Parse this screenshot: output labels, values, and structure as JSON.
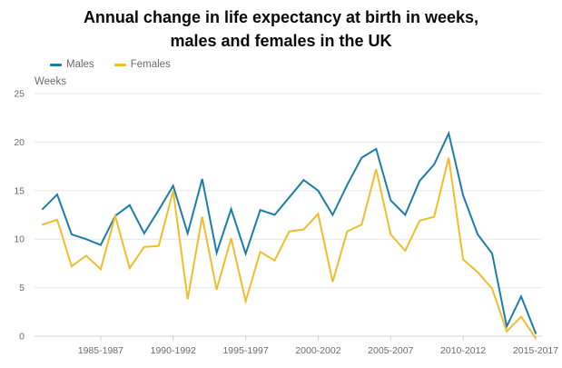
{
  "title": {
    "line1": "Annual change in life expectancy at birth in weeks,",
    "line2": "males and females in the UK"
  },
  "axis": {
    "unit_label": "Weeks"
  },
  "colors": {
    "males": "#1D7DA9",
    "females": "#EFBE2C",
    "grid": "#e7e7e7",
    "axis_line": "#ccd5dc",
    "tick_mark": "#c9cfd6",
    "text_muted": "#6b6b6b",
    "title_text": "#0a0a0a",
    "background": "#ffffff"
  },
  "chart_data": {
    "type": "line",
    "title": "Annual change in life expectancy at birth in weeks, males and females in the UK",
    "xlabel": "",
    "ylabel": "Weeks",
    "ylim": [
      0,
      25
    ],
    "grid": "horizontal",
    "legend_position": "top-left",
    "y_ticks": [
      0,
      5,
      10,
      15,
      20,
      25
    ],
    "x_tick_labels": [
      "1985-1987",
      "1990-1992",
      "1995-1997",
      "2000-2002",
      "2005-2007",
      "2010-2012",
      "2015-2017"
    ],
    "x_tick_indices": [
      4,
      9,
      14,
      19,
      24,
      29,
      34
    ],
    "categories": [
      "1981-1983",
      "1982-1984",
      "1983-1985",
      "1984-1986",
      "1985-1987",
      "1986-1988",
      "1987-1989",
      "1988-1990",
      "1989-1991",
      "1990-1992",
      "1991-1993",
      "1992-1994",
      "1993-1995",
      "1994-1996",
      "1995-1997",
      "1996-1998",
      "1997-1999",
      "1998-2000",
      "1999-2001",
      "2000-2002",
      "2001-2003",
      "2002-2004",
      "2003-2005",
      "2004-2006",
      "2005-2007",
      "2006-2008",
      "2007-2009",
      "2008-2010",
      "2009-2011",
      "2010-2012",
      "2011-2013",
      "2012-2014",
      "2013-2015",
      "2014-2016",
      "2015-2017"
    ],
    "series": [
      {
        "name": "Males",
        "color": "#1D7DA9",
        "values": [
          13.1,
          14.6,
          10.5,
          10.0,
          9.4,
          12.4,
          13.5,
          10.6,
          13.0,
          15.5,
          10.6,
          16.2,
          8.6,
          13.1,
          8.5,
          13.0,
          12.5,
          14.3,
          16.1,
          15.0,
          12.5,
          15.6,
          18.4,
          19.3,
          14.0,
          12.5,
          16.0,
          17.7,
          20.9,
          14.5,
          10.5,
          8.5,
          1.0,
          4.1,
          0.3
        ]
      },
      {
        "name": "Females",
        "color": "#EFBE2C",
        "values": [
          11.5,
          12.0,
          7.2,
          8.3,
          6.9,
          12.4,
          7.0,
          9.2,
          9.3,
          15.0,
          3.8,
          12.3,
          4.8,
          10.1,
          3.6,
          8.7,
          7.8,
          10.8,
          11.0,
          12.6,
          5.6,
          10.8,
          11.5,
          17.2,
          10.5,
          8.8,
          11.9,
          12.3,
          18.4,
          7.9,
          6.6,
          4.9,
          0.5,
          2.0,
          -0.2
        ]
      }
    ]
  }
}
